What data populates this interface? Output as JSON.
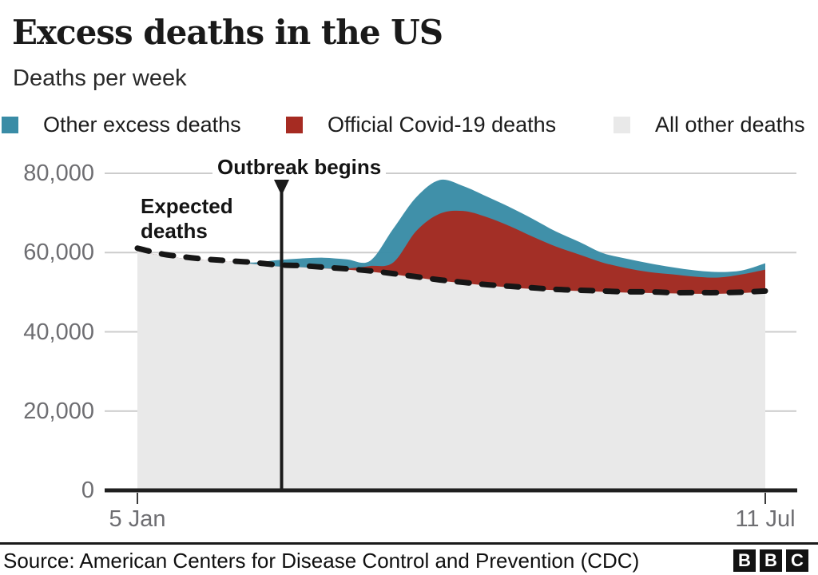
{
  "header": {
    "title": "Excess deaths in the US",
    "subtitle": "Deaths per week"
  },
  "legend": [
    {
      "label": "Other excess deaths",
      "color": "#3A8CA6"
    },
    {
      "label": "Official Covid-19 deaths",
      "color": "#A62B22"
    },
    {
      "label": "All other deaths",
      "color": "#E9E9E9"
    }
  ],
  "chart_data": {
    "type": "area",
    "stacked": true,
    "title": "Excess deaths in the US",
    "subtitle": "Deaths per week",
    "legend_position": "top",
    "x_axis": {
      "unit": "week",
      "n_points": 28,
      "tick_labels": [
        "5 Jan",
        "11 Jul"
      ],
      "tick_weeks": [
        0,
        27
      ]
    },
    "y_axis": {
      "tick_labels": [
        "0",
        "20,000",
        "40,000",
        "60,000",
        "80,000"
      ],
      "tick_values": [
        0,
        20000,
        40000,
        60000,
        80000
      ],
      "ylim": [
        0,
        80000
      ],
      "grid": true,
      "gridline_color": "#CCCCCC"
    },
    "series": [
      {
        "name": "All other deaths",
        "color": "#E9E9E9",
        "values": [
          60300,
          59300,
          58500,
          58100,
          57700,
          57100,
          56500,
          56300,
          56000,
          55700,
          55200,
          54500,
          53700,
          52900,
          52300,
          51700,
          51200,
          50800,
          50500,
          50300,
          50100,
          49900,
          49800,
          49700,
          49600,
          49600,
          49800,
          50100
        ]
      },
      {
        "name": "Official Covid-19 deaths",
        "color": "#A62B22",
        "values": [
          0,
          0,
          0,
          0,
          0,
          0,
          0,
          0,
          0,
          300,
          1400,
          3000,
          11800,
          16900,
          18200,
          17300,
          15500,
          13200,
          11000,
          9200,
          7400,
          6200,
          5300,
          4800,
          4300,
          4100,
          4700,
          5600
        ]
      },
      {
        "name": "Other excess deaths",
        "color": "#3A8CA6",
        "values": [
          0,
          0,
          0,
          0,
          0,
          400,
          1600,
          2200,
          2700,
          2300,
          1300,
          8500,
          8500,
          8500,
          6300,
          5200,
          4800,
          4500,
          3800,
          3200,
          2400,
          2400,
          2200,
          1800,
          1600,
          1400,
          1000,
          1600
        ]
      }
    ],
    "expected_line": {
      "label": "Expected deaths",
      "style": "dashed",
      "color": "#161616",
      "values": [
        61100,
        59700,
        58900,
        58300,
        57900,
        57500,
        56900,
        56700,
        56300,
        55900,
        55400,
        54700,
        53900,
        53100,
        52500,
        51900,
        51500,
        51100,
        50700,
        50500,
        50300,
        50100,
        50100,
        49900,
        49900,
        49900,
        50000,
        50300
      ]
    },
    "annotations": [
      {
        "label": "Outbreak begins",
        "type": "vertical-line-marker",
        "week": 6.2
      },
      {
        "label": "Expected deaths",
        "type": "text",
        "points_to": "expected_line"
      }
    ]
  },
  "footer": {
    "source": "Source: American Centers for Disease Control and Prevention (CDC)",
    "logo_letters": [
      "B",
      "B",
      "C"
    ]
  }
}
